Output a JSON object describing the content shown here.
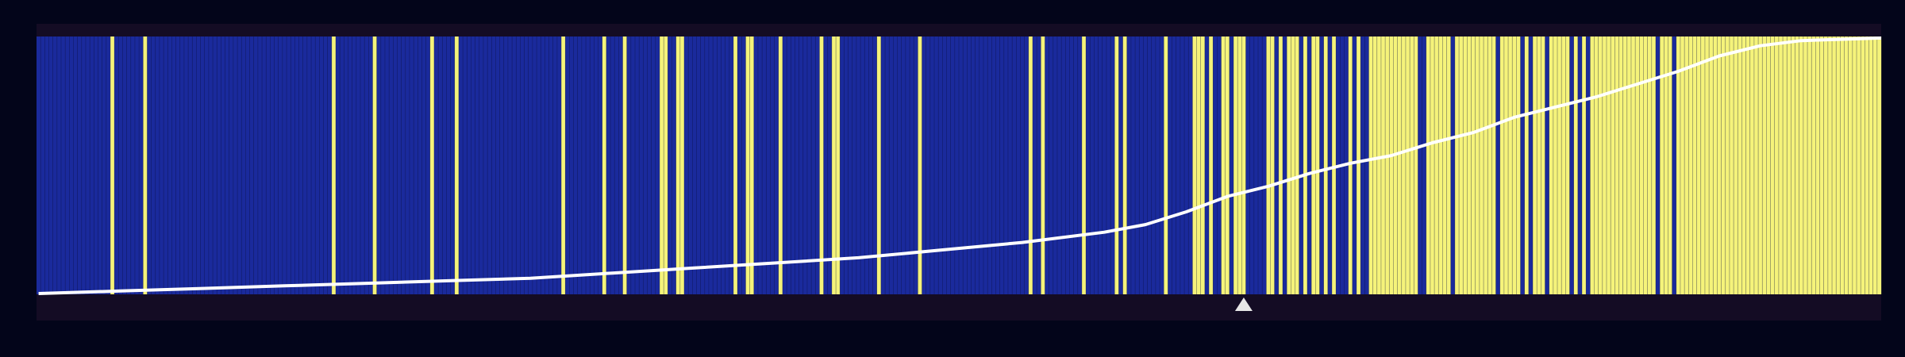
{
  "chart_data": {
    "type": "bar",
    "title": "",
    "xlabel": "",
    "ylabel": "",
    "n_bars": 450,
    "ylim": [
      0,
      1
    ],
    "class_colors": {
      "0": "#1a2a9c",
      "1": "#f5f37a"
    },
    "line_color": "#ffffff",
    "marker_color": "#e6e6e6",
    "background": "#03051a",
    "panel_color": "#140c24",
    "labels_by_range": [
      {
        "from": 0,
        "to": 449,
        "class": 0
      }
    ],
    "positive_indices": [
      18,
      26,
      72,
      82,
      96,
      102,
      128,
      138,
      143,
      152,
      153,
      156,
      157,
      170,
      173,
      174,
      181,
      191,
      194,
      195,
      205,
      215,
      242,
      245,
      255,
      263,
      265,
      275,
      282,
      283,
      284,
      286,
      289,
      290,
      292,
      293,
      294,
      300,
      301,
      303,
      305,
      306,
      307,
      309,
      311,
      312,
      314,
      316,
      320,
      322,
      325,
      326,
      327,
      328,
      329,
      330,
      331,
      332,
      333,
      334,
      335,
      336,
      339,
      340,
      341,
      342,
      343,
      344,
      346,
      347,
      348,
      349,
      350,
      351,
      352,
      353,
      354,
      355,
      357,
      358,
      359,
      360,
      361,
      363,
      365,
      366,
      367,
      369,
      370,
      371,
      372,
      373,
      375,
      377,
      379,
      380,
      381,
      382,
      383,
      384,
      385,
      386,
      387,
      388,
      389,
      390,
      391,
      392,
      393,
      394,
      396,
      397,
      398,
      400,
      401,
      402,
      403,
      404,
      405,
      406,
      407,
      408,
      409,
      410,
      411,
      412,
      413,
      414,
      415,
      416,
      417,
      418,
      419,
      420,
      421,
      422,
      423,
      424,
      425,
      426,
      427,
      428,
      429,
      430,
      431,
      432,
      433,
      434,
      435,
      436,
      437,
      438,
      439,
      440,
      441,
      442,
      443,
      444,
      445,
      446,
      447,
      448,
      449
    ],
    "curve_points": [
      [
        0,
        0.0
      ],
      [
        20,
        0.01
      ],
      [
        40,
        0.02
      ],
      [
        60,
        0.03
      ],
      [
        80,
        0.04
      ],
      [
        100,
        0.05
      ],
      [
        120,
        0.06
      ],
      [
        140,
        0.08
      ],
      [
        160,
        0.1
      ],
      [
        180,
        0.12
      ],
      [
        200,
        0.14
      ],
      [
        220,
        0.17
      ],
      [
        240,
        0.2
      ],
      [
        260,
        0.24
      ],
      [
        270,
        0.27
      ],
      [
        280,
        0.32
      ],
      [
        290,
        0.38
      ],
      [
        300,
        0.42
      ],
      [
        310,
        0.47
      ],
      [
        320,
        0.51
      ],
      [
        330,
        0.54
      ],
      [
        340,
        0.59
      ],
      [
        350,
        0.63
      ],
      [
        360,
        0.69
      ],
      [
        370,
        0.73
      ],
      [
        380,
        0.77
      ],
      [
        390,
        0.82
      ],
      [
        400,
        0.87
      ],
      [
        410,
        0.93
      ],
      [
        420,
        0.97
      ],
      [
        430,
        0.99
      ],
      [
        449,
        1.0
      ]
    ],
    "marker_index": 294
  }
}
